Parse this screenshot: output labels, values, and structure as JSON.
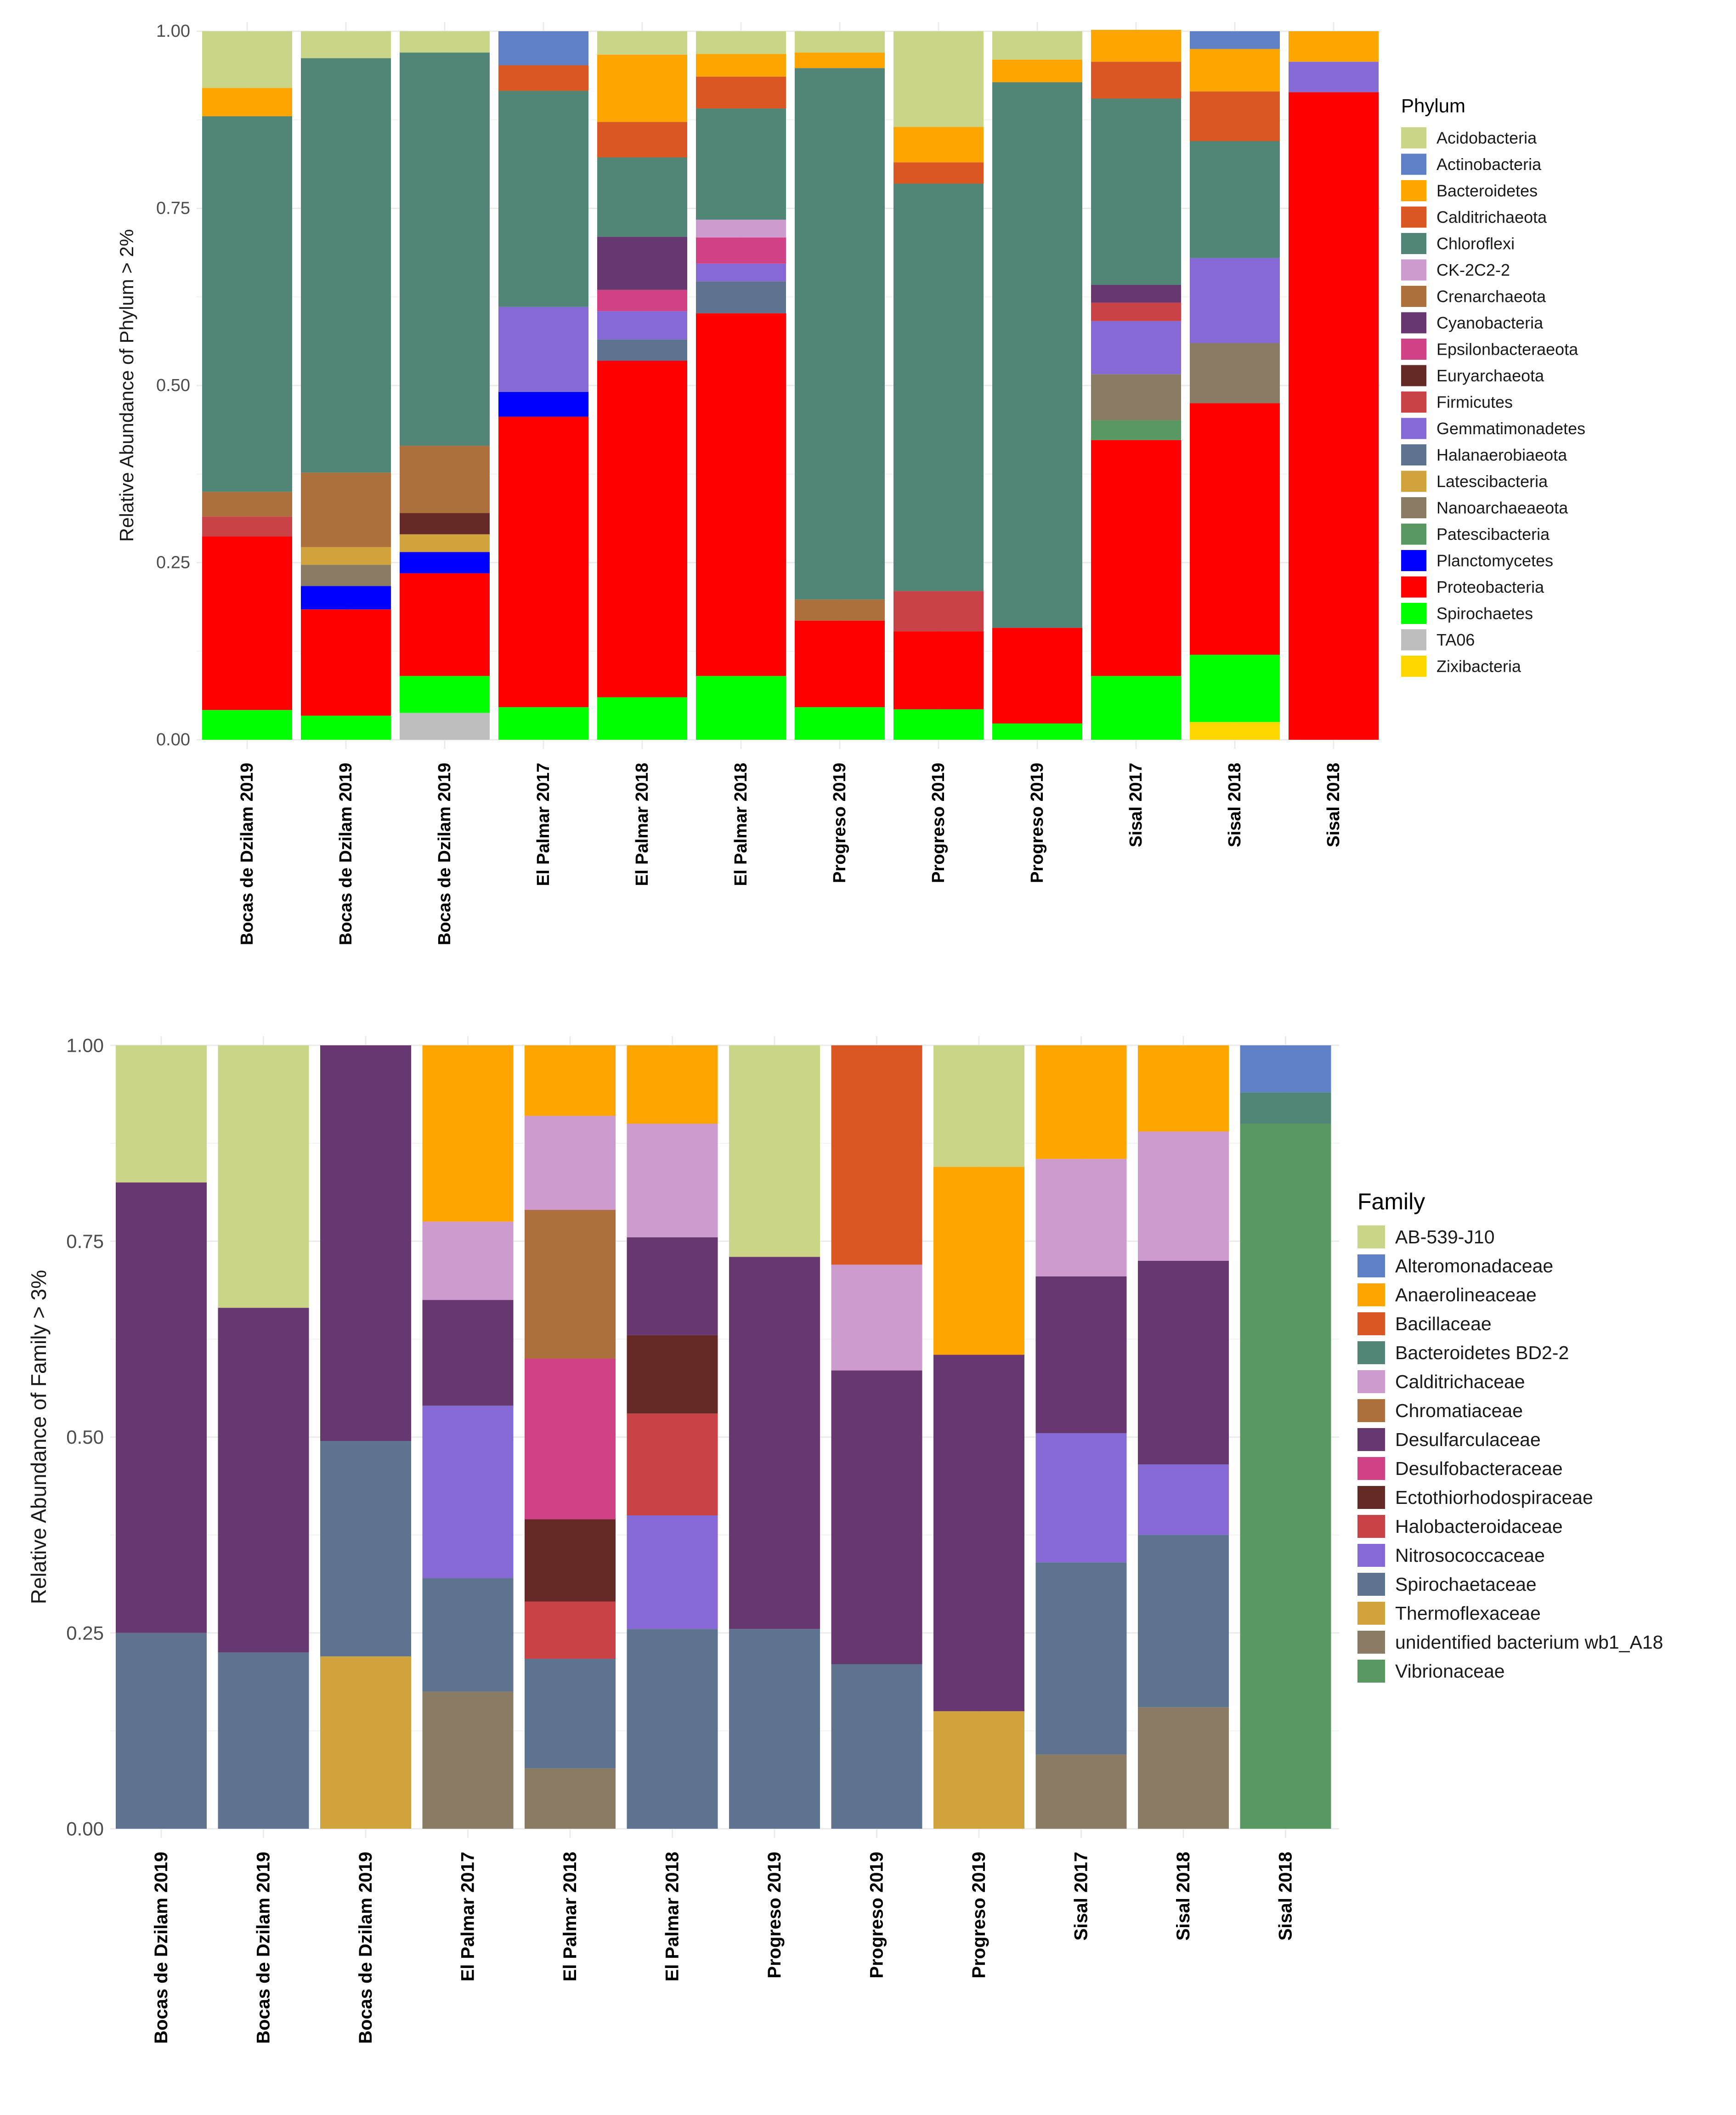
{
  "chart_data": [
    {
      "type": "bar",
      "stacked": true,
      "ylabel": "Relative Abundance of Phylum > 2%",
      "xlabel": "",
      "ylim": [
        0,
        1
      ],
      "yticks": [
        "0.00",
        "0.25",
        "0.50",
        "0.75",
        "1.00"
      ],
      "grid": true,
      "legend_position": "right",
      "legend_title": "Phylum",
      "categories": [
        "Bocas de Dzilam 2019",
        "Bocas de Dzilam 2019",
        "Bocas de Dzilam 2019",
        "El Palmar 2017",
        "El Palmar 2018",
        "El Palmar 2018",
        "Progreso 2019",
        "Progreso 2019",
        "Progreso 2019",
        "Sisal 2017",
        "Sisal 2018",
        "Sisal 2018"
      ],
      "series": [
        {
          "name": "Acidobacteria",
          "color": "#CBD588",
          "values": [
            0.08,
            0.038,
            0.03,
            0,
            0.033,
            0.032,
            0.03,
            0.135,
            0.04,
            0,
            0,
            0
          ]
        },
        {
          "name": "Actinobacteria",
          "color": "#5F7FC7",
          "values": [
            0,
            0,
            0,
            0.048,
            0,
            0,
            0,
            0,
            0,
            0,
            0.025,
            0
          ]
        },
        {
          "name": "Bacteroidetes",
          "color": "#FFA500",
          "values": [
            0.04,
            0,
            0,
            0,
            0.095,
            0.032,
            0.022,
            0.05,
            0.032,
            0.045,
            0.06,
            0.043
          ]
        },
        {
          "name": "Calditrichaeota",
          "color": "#DA5724",
          "values": [
            0,
            0,
            0,
            0.036,
            0.05,
            0.045,
            0,
            0.03,
            0,
            0.052,
            0.07,
            0
          ]
        },
        {
          "name": "Chloroflexi",
          "color": "#508578",
          "values": [
            0.53,
            0.585,
            0.555,
            0.305,
            0.112,
            0.157,
            0.75,
            0.575,
            0.77,
            0.263,
            0.165,
            0
          ]
        },
        {
          "name": "CK-2C2-2",
          "color": "#CD9BCD",
          "values": [
            0,
            0,
            0,
            0,
            0,
            0.025,
            0,
            0,
            0,
            0,
            0,
            0
          ]
        },
        {
          "name": "Crenarchaeota",
          "color": "#AD6F3B",
          "values": [
            0.035,
            0.105,
            0.095,
            0,
            0,
            0,
            0.03,
            0,
            0,
            0,
            0,
            0
          ]
        },
        {
          "name": "Cyanobacteria",
          "color": "#673770",
          "values": [
            0,
            0,
            0,
            0,
            0.075,
            0,
            0,
            0,
            0,
            0.025,
            0,
            0
          ]
        },
        {
          "name": "Epsilonbacteraeota",
          "color": "#D14285",
          "values": [
            0,
            0,
            0,
            0,
            0.03,
            0.037,
            0,
            0,
            0,
            0,
            0,
            0
          ]
        },
        {
          "name": "Euryarchaeota",
          "color": "#652926",
          "values": [
            0,
            0,
            0.03,
            0,
            0,
            0,
            0,
            0,
            0,
            0,
            0,
            0
          ]
        },
        {
          "name": "Firmicutes",
          "color": "#C84248",
          "values": [
            0.028,
            0,
            0,
            0,
            0,
            0,
            0,
            0.057,
            0,
            0.026,
            0,
            0
          ]
        },
        {
          "name": "Gemmatimonadetes",
          "color": "#8569D5",
          "values": [
            0,
            0,
            0,
            0.12,
            0.04,
            0.025,
            0,
            0,
            0,
            0.075,
            0.12,
            0.043
          ]
        },
        {
          "name": "Halanaerobiaeota",
          "color": "#5E738F",
          "values": [
            0,
            0,
            0,
            0,
            0.03,
            0.045,
            0,
            0,
            0,
            0,
            0,
            0
          ]
        },
        {
          "name": "Latescibacteria",
          "color": "#D1A33D",
          "values": [
            0,
            0.025,
            0.025,
            0,
            0,
            0,
            0,
            0,
            0,
            0,
            0,
            0
          ]
        },
        {
          "name": "Nanoarchaeaeota",
          "color": "#8A7C64",
          "values": [
            0,
            0.03,
            0,
            0,
            0,
            0,
            0,
            0,
            0,
            0.065,
            0.085,
            0
          ]
        },
        {
          "name": "Patescibacteria",
          "color": "#599861",
          "values": [
            0,
            0,
            0,
            0,
            0,
            0,
            0,
            0,
            0,
            0.028,
            0,
            0
          ]
        },
        {
          "name": "Planctomycetes",
          "color": "#0000FF",
          "values": [
            0,
            0.033,
            0.03,
            0.035,
            0,
            0,
            0,
            0,
            0,
            0,
            0,
            0
          ]
        },
        {
          "name": "Proteobacteria",
          "color": "#FF0000",
          "values": [
            0.245,
            0.15,
            0.145,
            0.41,
            0.475,
            0.512,
            0.122,
            0.11,
            0.135,
            0.333,
            0.355,
            0.914
          ]
        },
        {
          "name": "Spirochaetes",
          "color": "#00FF00",
          "values": [
            0.042,
            0.034,
            0.052,
            0.046,
            0.06,
            0.09,
            0.046,
            0.043,
            0.023,
            0.09,
            0.095,
            0
          ]
        },
        {
          "name": "TA06",
          "color": "#BEBEBE",
          "values": [
            0,
            0,
            0.038,
            0,
            0,
            0,
            0,
            0,
            0,
            0,
            0,
            0
          ]
        },
        {
          "name": "Zixibacteria",
          "color": "#FFD700",
          "values": [
            0,
            0,
            0,
            0,
            0,
            0,
            0,
            0,
            0,
            0,
            0.025,
            0
          ]
        }
      ]
    },
    {
      "type": "bar",
      "stacked": true,
      "ylabel": "Relative Abundance of Family > 3%",
      "xlabel": "",
      "ylim": [
        0,
        1
      ],
      "yticks": [
        "0.00",
        "0.25",
        "0.50",
        "0.75",
        "1.00"
      ],
      "grid": true,
      "legend_position": "right",
      "legend_title": "Family",
      "categories": [
        "Bocas de Dzilam 2019",
        "Bocas de Dzilam 2019",
        "Bocas de Dzilam 2019",
        "El Palmar 2017",
        "El Palmar 2018",
        "El Palmar 2018",
        "Progreso 2019",
        "Progreso 2019",
        "Progreso 2019",
        "Sisal 2017",
        "Sisal 2018",
        "Sisal 2018"
      ],
      "series": [
        {
          "name": "AB-539-J10",
          "color": "#CBD588",
          "values": [
            0.175,
            0.335,
            0,
            0,
            0,
            0,
            0.27,
            0,
            0.155,
            0,
            0,
            0
          ]
        },
        {
          "name": "Alteromonadaceae",
          "color": "#5F7FC7",
          "values": [
            0,
            0,
            0,
            0,
            0,
            0,
            0,
            0,
            0,
            0,
            0,
            0.06
          ]
        },
        {
          "name": "Anaerolineaceae",
          "color": "#FFA500",
          "values": [
            0,
            0,
            0,
            0.225,
            0.09,
            0.1,
            0,
            0,
            0.24,
            0.145,
            0.11,
            0
          ]
        },
        {
          "name": "Bacillaceae",
          "color": "#DA5724",
          "values": [
            0,
            0,
            0,
            0,
            0,
            0,
            0,
            0.28,
            0,
            0,
            0,
            0
          ]
        },
        {
          "name": "Bacteroidetes BD2-2",
          "color": "#508578",
          "values": [
            0,
            0,
            0,
            0,
            0,
            0,
            0,
            0,
            0,
            0,
            0,
            0.04
          ]
        },
        {
          "name": "Calditrichaceae",
          "color": "#CD9BCD",
          "values": [
            0,
            0,
            0,
            0.1,
            0.12,
            0.145,
            0,
            0.135,
            0,
            0.15,
            0.165,
            0
          ]
        },
        {
          "name": "Chromatiaceae",
          "color": "#AD6F3B",
          "values": [
            0,
            0,
            0,
            0,
            0.19,
            0,
            0,
            0,
            0,
            0,
            0,
            0
          ]
        },
        {
          "name": "Desulfarculaceae",
          "color": "#673770",
          "values": [
            0.575,
            0.44,
            0.505,
            0.135,
            0,
            0.125,
            0.475,
            0.375,
            0.455,
            0.2,
            0.26,
            0
          ]
        },
        {
          "name": "Desulfobacteraceae",
          "color": "#D14285",
          "values": [
            0,
            0,
            0,
            0,
            0.205,
            0,
            0,
            0,
            0,
            0,
            0,
            0
          ]
        },
        {
          "name": "Ectothiorhodospiraceae",
          "color": "#652926",
          "values": [
            0,
            0,
            0,
            0,
            0.105,
            0.1,
            0,
            0,
            0,
            0,
            0,
            0
          ]
        },
        {
          "name": "Halobacteroidaceae",
          "color": "#C84248",
          "values": [
            0,
            0,
            0,
            0,
            0.073,
            0.13,
            0,
            0,
            0,
            0,
            0,
            0
          ]
        },
        {
          "name": "Nitrosococcaceae",
          "color": "#8569D5",
          "values": [
            0,
            0,
            0,
            0.22,
            0,
            0.145,
            0,
            0,
            0,
            0.165,
            0.09,
            0
          ]
        },
        {
          "name": "Spirochaetaceae",
          "color": "#5E738F",
          "values": [
            0.25,
            0.225,
            0.275,
            0.145,
            0.14,
            0.255,
            0.255,
            0.21,
            0,
            0.245,
            0.22,
            0
          ]
        },
        {
          "name": "Thermoflexaceae",
          "color": "#D1A33D",
          "values": [
            0,
            0,
            0.22,
            0,
            0,
            0,
            0,
            0,
            0.15,
            0,
            0,
            0
          ]
        },
        {
          "name": "unidentified bacterium wb1_A18",
          "color": "#8A7C64",
          "values": [
            0,
            0,
            0,
            0.175,
            0.077,
            0,
            0,
            0,
            0,
            0.095,
            0.155,
            0
          ]
        },
        {
          "name": "Vibrionaceae",
          "color": "#599861",
          "values": [
            0,
            0,
            0,
            0,
            0,
            0,
            0,
            0,
            0,
            0,
            0,
            0.9
          ]
        }
      ]
    }
  ]
}
